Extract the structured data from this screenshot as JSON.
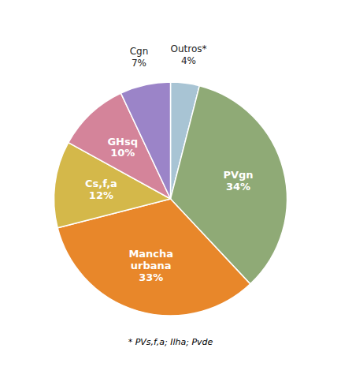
{
  "chart_data": {
    "type": "pie",
    "categories": [
      "Outros*",
      "PVgn",
      "Mancha\nurbana",
      "Cs,f,a",
      "GHsq",
      "Cgn"
    ],
    "values": [
      4,
      34,
      33,
      12,
      10,
      7
    ],
    "value_labels": [
      "4%",
      "34%",
      "33%",
      "12%",
      "10%",
      "7%"
    ],
    "colors": [
      "#a8c4d4",
      "#8faa76",
      "#e8872a",
      "#d4b84a",
      "#d4849a",
      "#9b84c8"
    ],
    "data_labels": true,
    "annotations": [
      "* PVs,f,a; Ilha; Pvde"
    ]
  }
}
